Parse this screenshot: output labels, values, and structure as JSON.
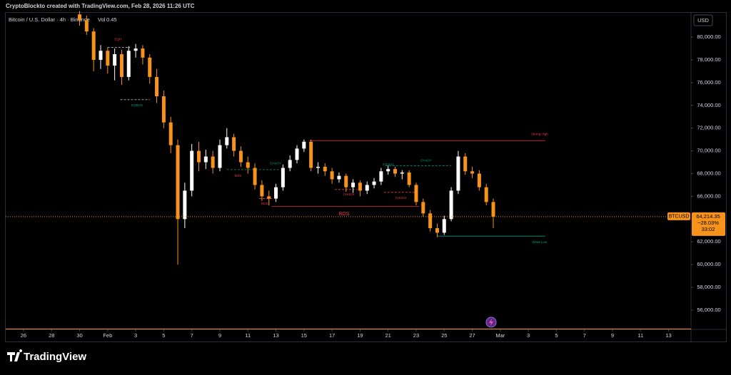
{
  "header": {
    "attribution": "CryptoBlockto created with TradingView.com, Feb 28, 2026 11:26 UTC"
  },
  "footer": {
    "logo": "TradingView"
  },
  "chart_data": {
    "type": "candlestick",
    "title": "Bitcoin / U.S. Dollar · 4h · Binance",
    "volume_label": "Vol",
    "volume_value": "0.45",
    "currency": "USD",
    "up_color": "#ffffff",
    "down_color": "#f7931a",
    "x": [
      4,
      4.5,
      5,
      5.5,
      6,
      6.5,
      7,
      7.5,
      8,
      8.5,
      9,
      9.5,
      10,
      10.5,
      11,
      11.5,
      12,
      12.5,
      13,
      13.5,
      14,
      14.5,
      15,
      15.5,
      16,
      16.5,
      17,
      17.5,
      18,
      18.5,
      19,
      19.5,
      20,
      20.5,
      21,
      21.5,
      22,
      22.5,
      23,
      23.5,
      24,
      24.5,
      25,
      25.5,
      26,
      26.5,
      27,
      27.5,
      28,
      28.5,
      29,
      29.5,
      30,
      30.5,
      31,
      31.5,
      32,
      32.5,
      33,
      33.5
    ],
    "open": [
      82000,
      81500,
      80500,
      78000,
      78800,
      77500,
      78500,
      76500,
      78800,
      79000,
      78200,
      76500,
      74800,
      72500,
      70500,
      64000,
      66500,
      70000,
      69000,
      69500,
      68500,
      70500,
      71200,
      70000,
      69000,
      68500,
      67000,
      66000,
      65800,
      66800,
      68500,
      69200,
      70200,
      70800,
      68500,
      68600,
      68200,
      67500,
      67800,
      66800,
      67200,
      66500,
      67000,
      67300,
      68200,
      68400,
      68000,
      68100,
      67000,
      65500,
      64500,
      63200,
      62800,
      64000,
      66500,
      69500,
      68200,
      68000,
      66800,
      65500
    ],
    "high": [
      82300,
      81900,
      80800,
      79300,
      79100,
      79000,
      78900,
      79200,
      79400,
      79300,
      78500,
      77200,
      75300,
      73000,
      71000,
      67200,
      70600,
      70800,
      70100,
      70000,
      71000,
      72000,
      71500,
      70400,
      69500,
      68900,
      67400,
      66500,
      67100,
      68800,
      69600,
      70500,
      71000,
      71000,
      69000,
      68900,
      68500,
      68100,
      68000,
      67500,
      67400,
      67300,
      67600,
      68500,
      68700,
      68600,
      68300,
      68300,
      67200,
      65800,
      64800,
      63600,
      64300,
      66800,
      70000,
      69800,
      68600,
      68300,
      67100,
      65800
    ],
    "low": [
      81000,
      80200,
      77000,
      77200,
      76800,
      76200,
      75800,
      76200,
      78200,
      77600,
      75900,
      74200,
      72000,
      69800,
      60000,
      63200,
      66000,
      68200,
      68400,
      68000,
      68200,
      70200,
      69500,
      68600,
      68000,
      66600,
      65600,
      65200,
      65500,
      66500,
      68200,
      68900,
      69900,
      68200,
      68000,
      67800,
      67100,
      67200,
      66400,
      66300,
      66000,
      66200,
      66700,
      67000,
      67900,
      67700,
      67500,
      66800,
      65200,
      64200,
      62900,
      62400,
      62600,
      63800,
      66200,
      67900,
      67600,
      66500,
      65200,
      63200
    ],
    "close": [
      81500,
      80500,
      78000,
      78800,
      77500,
      78500,
      76500,
      78800,
      79000,
      78200,
      76500,
      74800,
      72500,
      70500,
      64000,
      66500,
      70000,
      69000,
      69500,
      68500,
      70500,
      71200,
      70000,
      69000,
      68500,
      67000,
      66000,
      65800,
      66800,
      68500,
      69200,
      70200,
      70800,
      68500,
      68600,
      68200,
      67500,
      67800,
      66800,
      67200,
      66500,
      67000,
      67300,
      68200,
      68400,
      68000,
      68100,
      67000,
      65500,
      64500,
      63200,
      62800,
      64000,
      66500,
      69500,
      68200,
      68000,
      66800,
      65500,
      64214.35
    ],
    "xlim": [
      -1.27,
      47.6
    ],
    "ylim": [
      54300,
      82200
    ],
    "xticks": [
      {
        "value": 0,
        "label": "26"
      },
      {
        "value": 2,
        "label": "28"
      },
      {
        "value": 4,
        "label": "30"
      },
      {
        "value": 6,
        "label": "Feb"
      },
      {
        "value": 8,
        "label": "3"
      },
      {
        "value": 10,
        "label": "5"
      },
      {
        "value": 12,
        "label": "7"
      },
      {
        "value": 14,
        "label": "9"
      },
      {
        "value": 16,
        "label": "11"
      },
      {
        "value": 18,
        "label": "13"
      },
      {
        "value": 20,
        "label": "15"
      },
      {
        "value": 22,
        "label": "17"
      },
      {
        "value": 24,
        "label": "19"
      },
      {
        "value": 26,
        "label": "21"
      },
      {
        "value": 28,
        "label": "23"
      },
      {
        "value": 30,
        "label": "25"
      },
      {
        "value": 32,
        "label": "27"
      },
      {
        "value": 34,
        "label": "Mar"
      },
      {
        "value": 36,
        "label": "3"
      },
      {
        "value": 38,
        "label": "5"
      },
      {
        "value": 40,
        "label": "7"
      },
      {
        "value": 42,
        "label": "9"
      },
      {
        "value": 44,
        "label": "11"
      },
      {
        "value": 46,
        "label": "13"
      }
    ],
    "yticks": [
      {
        "value": 56000,
        "label": "56,000.00"
      },
      {
        "value": 58000,
        "label": "58,000.00"
      },
      {
        "value": 60000,
        "label": "60,000.00"
      },
      {
        "value": 62000,
        "label": "62,000.00"
      },
      {
        "value": 64000,
        "label": "64,000.00"
      },
      {
        "value": 66000,
        "label": "66,000.00"
      },
      {
        "value": 68000,
        "label": "68,000.00"
      },
      {
        "value": 70000,
        "label": "70,000.00"
      },
      {
        "value": 72000,
        "label": "72,000.00"
      },
      {
        "value": 74000,
        "label": "74,000.00"
      },
      {
        "value": 76000,
        "label": "76,000.00"
      },
      {
        "value": 78000,
        "label": "78,000.00"
      },
      {
        "value": 80000,
        "label": "80,000.00"
      }
    ],
    "last_price": {
      "symbol": "BTCUSD",
      "value": 64214.35,
      "label": "64,214.35",
      "change": {
        "value": -28.03,
        "label": "−28.03%"
      },
      "countdown": "33:02",
      "color": "#f7931a"
    },
    "levels": [
      {
        "value": 79100,
        "from": 6.0,
        "to": 7.6,
        "color": "#b2b5be",
        "dashed": true
      },
      {
        "value": 74500,
        "from": 6.9,
        "to": 9.0,
        "color": "#b2b5be",
        "dashed": true
      },
      {
        "value": 68350,
        "from": 14.5,
        "to": 18.2,
        "color": "#089981",
        "dashed": true
      },
      {
        "value": 68700,
        "from": 25.8,
        "to": 30.5,
        "color": "#089981",
        "dashed": true
      },
      {
        "value": 66350,
        "from": 25.7,
        "to": 28.1,
        "color": "#f23645",
        "dashed": true
      },
      {
        "value": 66600,
        "from": 22.2,
        "to": 23.8,
        "color": "#f23645",
        "dashed": true
      },
      {
        "value": 65800,
        "from": 16.8,
        "to": 17.7,
        "color": "#f23645",
        "dashed": true
      },
      {
        "value": 65100,
        "from": 17.7,
        "to": 28.2,
        "color": "#f23645",
        "dashed": false
      },
      {
        "value": 70900,
        "from": 20.4,
        "to": 37.2,
        "color": "#f23645",
        "dashed": false
      },
      {
        "value": 62500,
        "from": 29.5,
        "to": 37.2,
        "color": "#089981",
        "dashed": false
      }
    ],
    "annotations": [
      {
        "text": "EQH",
        "x": 6.74,
        "value": 79800,
        "color": "#f23645"
      },
      {
        "text": "EQBOS",
        "x": 8.1,
        "value": 74000,
        "color": "#089981"
      },
      {
        "text": "BOS",
        "x": 15.3,
        "value": 67800,
        "color": "#f23645"
      },
      {
        "text": "CHoCH",
        "x": 17.96,
        "value": 68900,
        "color": "#089981"
      },
      {
        "text": "BOS",
        "x": 17.2,
        "value": 65350,
        "color": "#f23645"
      },
      {
        "text": "BOS",
        "x": 22.86,
        "value": 64450,
        "color": "#f23645",
        "large": true
      },
      {
        "text": "CHoCH",
        "x": 23.2,
        "value": 66150,
        "color": "#f23645"
      },
      {
        "text": "CHoCH",
        "x": 26.0,
        "value": 68800,
        "color": "#089981"
      },
      {
        "text": "CHoCH",
        "x": 26.9,
        "value": 65850,
        "color": "#f23645"
      },
      {
        "text": "CHoCH",
        "x": 28.7,
        "value": 69150,
        "color": "#089981"
      },
      {
        "text": "Strong High",
        "x": 36.8,
        "value": 71450,
        "color": "#f23645"
      },
      {
        "text": "Weak Low",
        "x": 36.8,
        "value": 61950,
        "color": "#089981"
      }
    ]
  }
}
